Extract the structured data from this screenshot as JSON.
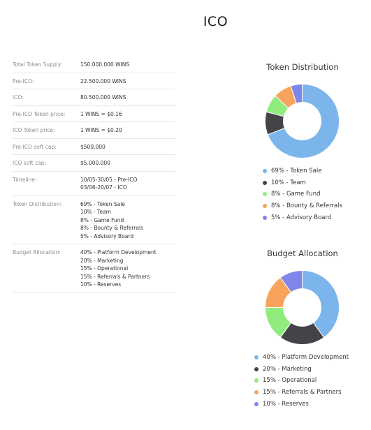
{
  "page": {
    "title": "ICO"
  },
  "info_rows": [
    {
      "label": "Total Token Supply:",
      "values": [
        "150.000.000 WINS"
      ]
    },
    {
      "label": "Pre-ICO:",
      "values": [
        "22.500.000 WINS"
      ]
    },
    {
      "label": "ICO:",
      "values": [
        "80.500.000 WINS"
      ]
    },
    {
      "label": "Pre-ICO Token price:",
      "values": [
        "1 WINS = $0.16"
      ]
    },
    {
      "label": "ICO Token price:",
      "values": [
        "1 WINS = $0.20"
      ]
    },
    {
      "label": "Pre-ICO soft cap:",
      "values": [
        "$500.000"
      ]
    },
    {
      "label": "ICO soft cap:",
      "values": [
        "$5.000.000"
      ]
    },
    {
      "label": "Timeline:",
      "values": [
        "10/05-30/05 - Pre-ICO",
        "03/06-20/07 - ICO"
      ]
    },
    {
      "label": "Token Distribution:",
      "values": [
        "69% - Token Sale",
        "10% - Team",
        "8% - Game Fund",
        "8% - Bounty & Referrals",
        "5% - Advisory Board"
      ]
    },
    {
      "label": "Budget Allocation:",
      "values": [
        "40% - Platform Development",
        "20% - Marketing",
        "15% - Operational",
        "15% - Referrals & Partners",
        "10% - Reserves"
      ]
    }
  ],
  "chart_data": [
    {
      "type": "pie",
      "title": "Token Distribution",
      "categories": [
        "Token Sale",
        "Team",
        "Game Fund",
        "Bounty & Referrals",
        "Advisory Board"
      ],
      "values": [
        69,
        10,
        8,
        8,
        5
      ],
      "colors": [
        "#7cb5ec",
        "#434348",
        "#90ed7d",
        "#f7a35c",
        "#8085e9"
      ],
      "legend_labels": [
        "69% - Token Sale",
        "10% - Team",
        "8% - Game Fund",
        "8% - Bounty & Referrals",
        "5% - Advisory Board"
      ],
      "legend": "bottom"
    },
    {
      "type": "pie",
      "title": "Budget Allocation",
      "categories": [
        "Platform Development",
        "Marketing",
        "Operational",
        "Referrals & Partners",
        "Reserves"
      ],
      "values": [
        40,
        20,
        15,
        15,
        10
      ],
      "colors": [
        "#7cb5ec",
        "#434348",
        "#90ed7d",
        "#f7a35c",
        "#8085e9"
      ],
      "legend_labels": [
        "40% - Platform Development",
        "20% - Marketing",
        "15% - Operational",
        "15% - Referrals & Partners",
        "10% - Reserves"
      ],
      "legend": "bottom"
    }
  ]
}
